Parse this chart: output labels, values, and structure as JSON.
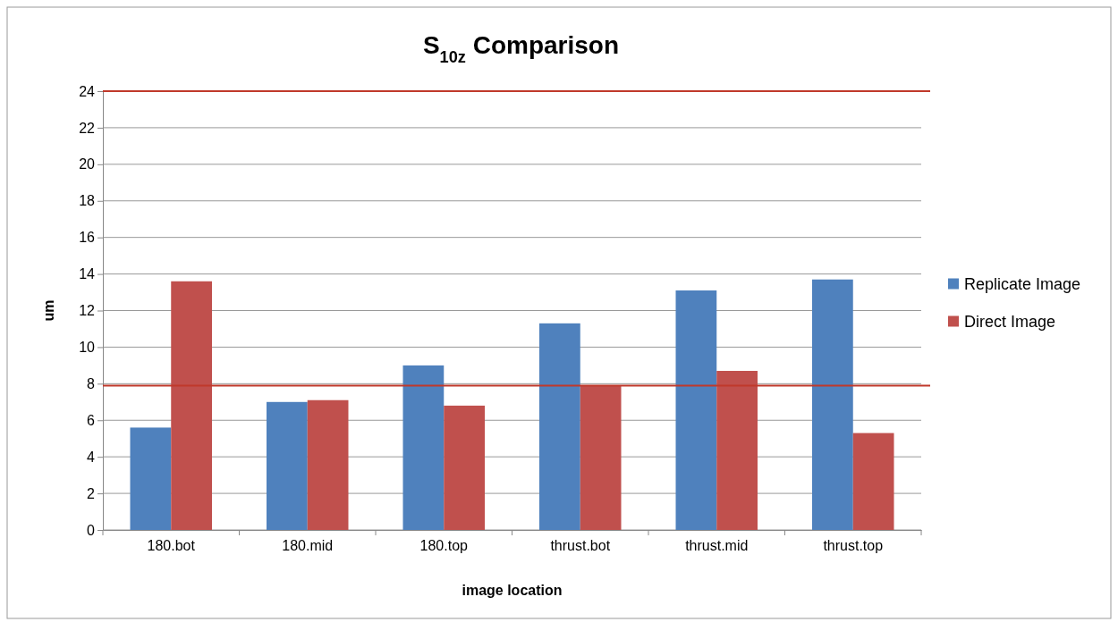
{
  "chart_data": {
    "type": "bar",
    "title": "S$_{10z}$ Comparison",
    "xlabel": "image location",
    "ylabel": "um",
    "categories": [
      "180.bot",
      "180.mid",
      "180.top",
      "thrust.bot",
      "thrust.mid",
      "thrust.top"
    ],
    "series": [
      {
        "name": "Replicate Image",
        "color": "#4f81bd",
        "values": [
          5.6,
          7.0,
          9.0,
          11.3,
          13.1,
          13.7
        ]
      },
      {
        "name": "Direct Image",
        "color": "#c0504d",
        "values": [
          13.6,
          7.1,
          6.8,
          7.9,
          8.7,
          5.3
        ]
      }
    ],
    "ylim": [
      0,
      24
    ],
    "yticks": [
      0,
      2,
      4,
      6,
      8,
      10,
      12,
      14,
      16,
      18,
      20,
      22,
      24
    ],
    "grid": "y",
    "legend": "right",
    "ref_lines": [
      {
        "axis": "y",
        "value": 24,
        "color": "#c0392b"
      },
      {
        "axis": "y",
        "value": 7.9,
        "color": "#c0392b"
      }
    ]
  }
}
